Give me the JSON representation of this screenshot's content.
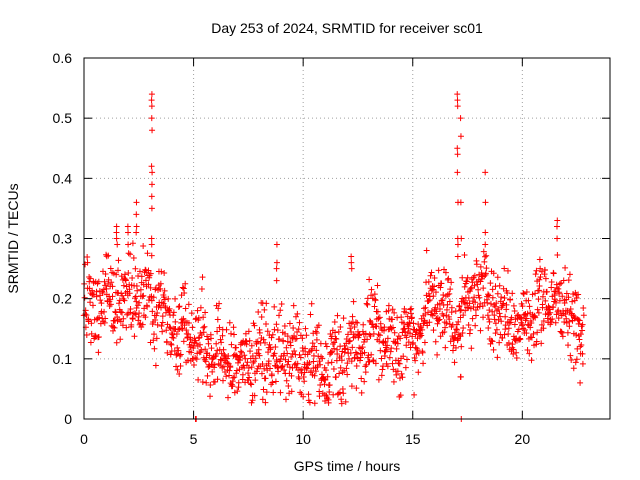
{
  "chart_data": {
    "type": "scatter",
    "title": "Day 253 of 2024, SRMTID for receiver sc01",
    "xlabel": "GPS time / hours",
    "ylabel": "SRMTID / TECUs",
    "xlim": [
      0,
      24
    ],
    "ylim": [
      0,
      0.6
    ],
    "xticks": [
      0,
      5,
      10,
      15,
      20
    ],
    "xtick_labels": [
      "0",
      "5",
      "10",
      "15",
      "20"
    ],
    "yticks": [
      0,
      0.1,
      0.2,
      0.3,
      0.4,
      0.5,
      0.6
    ],
    "ytick_labels": [
      "0",
      "0.1",
      "0.2",
      "0.3",
      "0.4",
      "0.5",
      "0.6"
    ],
    "grid": true,
    "marker": "+",
    "color": "#ff0000",
    "x_range_hours": [
      0.0,
      22.8
    ],
    "trend_hours": [
      0,
      1,
      2,
      3,
      4,
      5,
      6,
      7,
      8,
      9,
      10,
      11,
      12,
      13,
      14,
      15,
      16,
      17,
      18,
      19,
      20,
      21,
      22,
      22.8
    ],
    "trend_values": [
      0.17,
      0.21,
      0.21,
      0.2,
      0.16,
      0.14,
      0.11,
      0.09,
      0.11,
      0.11,
      0.1,
      0.08,
      0.11,
      0.14,
      0.13,
      0.13,
      0.2,
      0.16,
      0.22,
      0.18,
      0.15,
      0.2,
      0.19,
      0.14
    ],
    "spikes": [
      {
        "x": 3.1,
        "values": [
          0.54,
          0.53,
          0.52,
          0.5,
          0.48,
          0.42,
          0.41,
          0.39,
          0.37,
          0.35,
          0.3,
          0.29
        ]
      },
      {
        "x": 17.05,
        "values": [
          0.54,
          0.53,
          0.52,
          0.45,
          0.44,
          0.41,
          0.36,
          0.3,
          0.29,
          0.27
        ]
      },
      {
        "x": 17.2,
        "values": [
          0.5,
          0.47,
          0.36,
          0.3,
          0.07,
          0.07,
          0.0
        ]
      },
      {
        "x": 18.3,
        "values": [
          0.41,
          0.36,
          0.31,
          0.29
        ]
      },
      {
        "x": 8.8,
        "values": [
          0.29,
          0.26,
          0.25,
          0.23
        ]
      },
      {
        "x": 1.5,
        "values": [
          0.32,
          0.31,
          0.3,
          0.29
        ]
      },
      {
        "x": 2.0,
        "values": [
          0.32,
          0.31,
          0.29
        ]
      },
      {
        "x": 2.4,
        "values": [
          0.36,
          0.34,
          0.32,
          0.31
        ]
      },
      {
        "x": 12.2,
        "values": [
          0.27,
          0.26,
          0.25
        ]
      },
      {
        "x": 21.6,
        "values": [
          0.33,
          0.32,
          0.3
        ]
      },
      {
        "x": 5.1,
        "values": [
          0.0,
          0.0,
          0.0
        ]
      },
      {
        "x": 11.0,
        "values": [
          0.03,
          0.04
        ]
      }
    ]
  }
}
